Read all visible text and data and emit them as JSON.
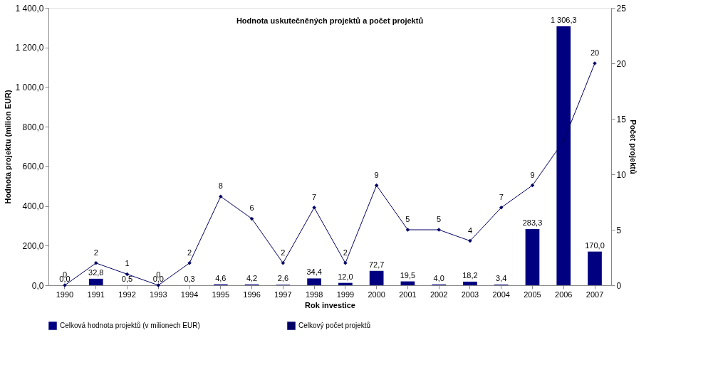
{
  "chart_data": {
    "type": "bar",
    "title": "Hodnota uskutečněných projektů a počet projektů",
    "xlabel": "Rok investice",
    "ylabel": "Hodnota projektu (milion EUR)",
    "y2label": "Počet projektů",
    "categories": [
      "1990",
      "1991",
      "1992",
      "1993",
      "1994",
      "1995",
      "1996",
      "1997",
      "1998",
      "1999",
      "2000",
      "2001",
      "2002",
      "2003",
      "2004",
      "2005",
      "2006",
      "2007"
    ],
    "series": [
      {
        "name": "Celková hodnota projektů (v milionech EUR)",
        "color": "#000080",
        "values": [
          0.0,
          32.8,
          0.5,
          0.0,
          0.3,
          4.6,
          4.2,
          2.6,
          34.4,
          12.0,
          72.7,
          19.5,
          4.0,
          18.2,
          3.4,
          283.3,
          1306.3,
          170.0
        ],
        "value_labels": [
          "0,0",
          "32,8",
          "0,5",
          "0,0",
          "0,3",
          "4,6",
          "4,2",
          "2,6",
          "34,4",
          "12,0",
          "72,7",
          "19,5",
          "4,0",
          "18,2",
          "3,4",
          "283,3",
          "1 306,3",
          "170,0"
        ]
      },
      {
        "name": "Celkový počet projektů",
        "type": "line",
        "axis": "y2",
        "color": "#000066",
        "marker": "diamond",
        "values": [
          0,
          2,
          1,
          0,
          2,
          8,
          6,
          2,
          7,
          2,
          9,
          5,
          5,
          4,
          7,
          9,
          13,
          20
        ],
        "value_labels": [
          "0",
          "2",
          "1",
          "0",
          "2",
          "8",
          "6",
          "2",
          "7",
          "2",
          "9",
          "5",
          "5",
          "4",
          "7",
          "9",
          null,
          "20"
        ]
      }
    ],
    "ylim": [
      0,
      1400
    ],
    "yticks": [
      {
        "value": 0,
        "label": "0,0"
      },
      {
        "value": 200,
        "label": "200,0"
      },
      {
        "value": 400,
        "label": "400,0"
      },
      {
        "value": 600,
        "label": "600,0"
      },
      {
        "value": 800,
        "label": "800,0"
      },
      {
        "value": 1000,
        "label": "1 000,0"
      },
      {
        "value": 1200,
        "label": "1 200,0"
      },
      {
        "value": 1400,
        "label": "1 400,0"
      }
    ],
    "y2lim": [
      0,
      25
    ],
    "y2ticks": [
      0,
      5,
      10,
      15,
      20,
      25
    ],
    "grid": false,
    "legend": "bottom"
  }
}
